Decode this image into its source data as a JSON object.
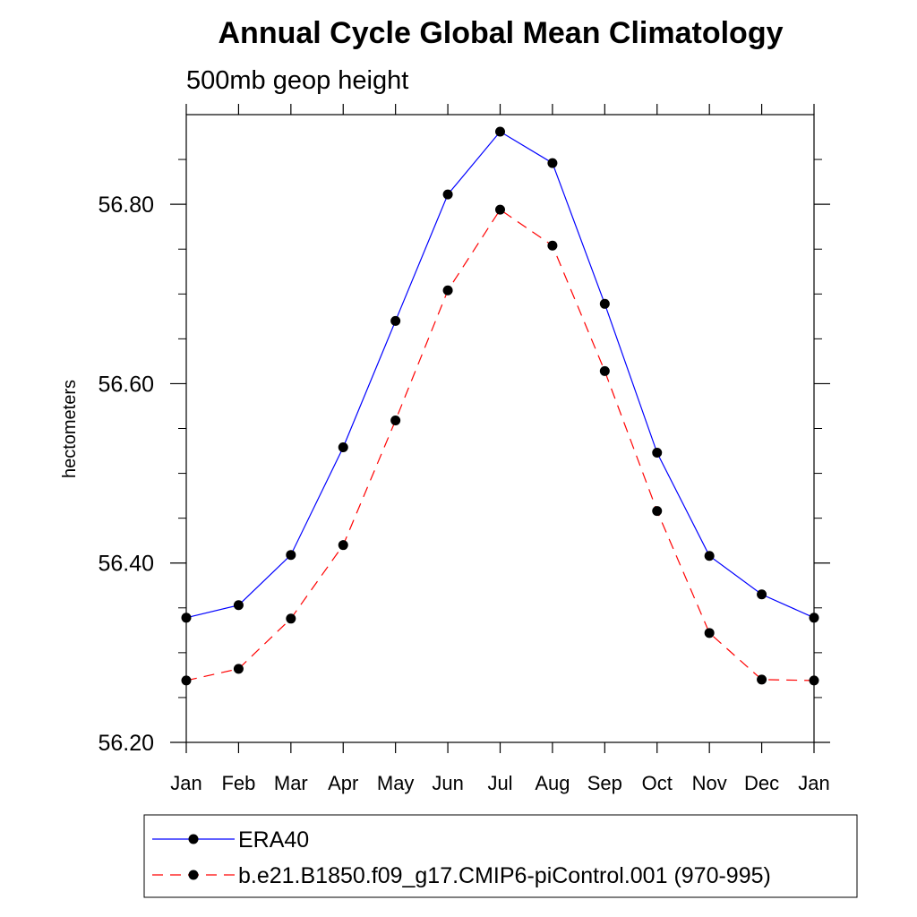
{
  "chart_data": {
    "type": "line",
    "title": "Annual Cycle Global Mean Climatology",
    "subtitle": "500mb geop height",
    "ylabel": "hectometers",
    "xlabel": "",
    "categories": [
      "Jan",
      "Feb",
      "Mar",
      "Apr",
      "May",
      "Jun",
      "Jul",
      "Aug",
      "Sep",
      "Oct",
      "Nov",
      "Dec",
      "Jan"
    ],
    "ylim": [
      56.2,
      56.9
    ],
    "yticks": [
      "56.20",
      "56.40",
      "56.60",
      "56.80"
    ],
    "grid": false,
    "legend": "bottom",
    "series": [
      {
        "name": "ERA40",
        "color": "#0000ff",
        "dash": "solid",
        "values": [
          56.339,
          56.353,
          56.409,
          56.529,
          56.67,
          56.811,
          56.881,
          56.846,
          56.689,
          56.523,
          56.408,
          56.365,
          56.339
        ]
      },
      {
        "name": "b.e21.B1850.f09_g17.CMIP6-piControl.001 (970-995)",
        "color": "#ff0000",
        "dash": "dashed",
        "values": [
          56.269,
          56.282,
          56.338,
          56.42,
          56.559,
          56.704,
          56.794,
          56.754,
          56.614,
          56.458,
          56.322,
          56.27,
          56.269
        ]
      }
    ]
  }
}
